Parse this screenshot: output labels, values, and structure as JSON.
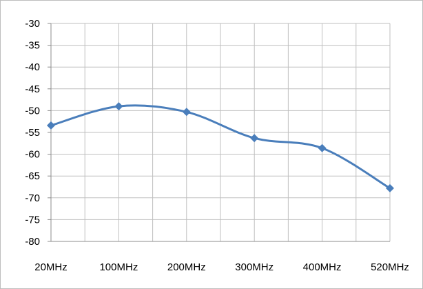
{
  "chart_data": {
    "type": "line",
    "categories": [
      "20MHz",
      "100MHz",
      "200MHz",
      "300MHz",
      "400MHz",
      "520MHz"
    ],
    "series": [
      {
        "values": [
          -53.4,
          -49.0,
          -50.3,
          -56.3,
          -58.6,
          -67.8
        ]
      }
    ],
    "ylim": [
      -80,
      -30
    ],
    "yticks": [
      -30,
      -35,
      -40,
      -45,
      -50,
      -55,
      -60,
      -65,
      -70,
      -75,
      -80
    ],
    "grid": true,
    "legend": "none",
    "colors": {
      "line": "#4a7ebb",
      "grid": "#bfbfbf",
      "axis": "#8c8c8c"
    }
  }
}
